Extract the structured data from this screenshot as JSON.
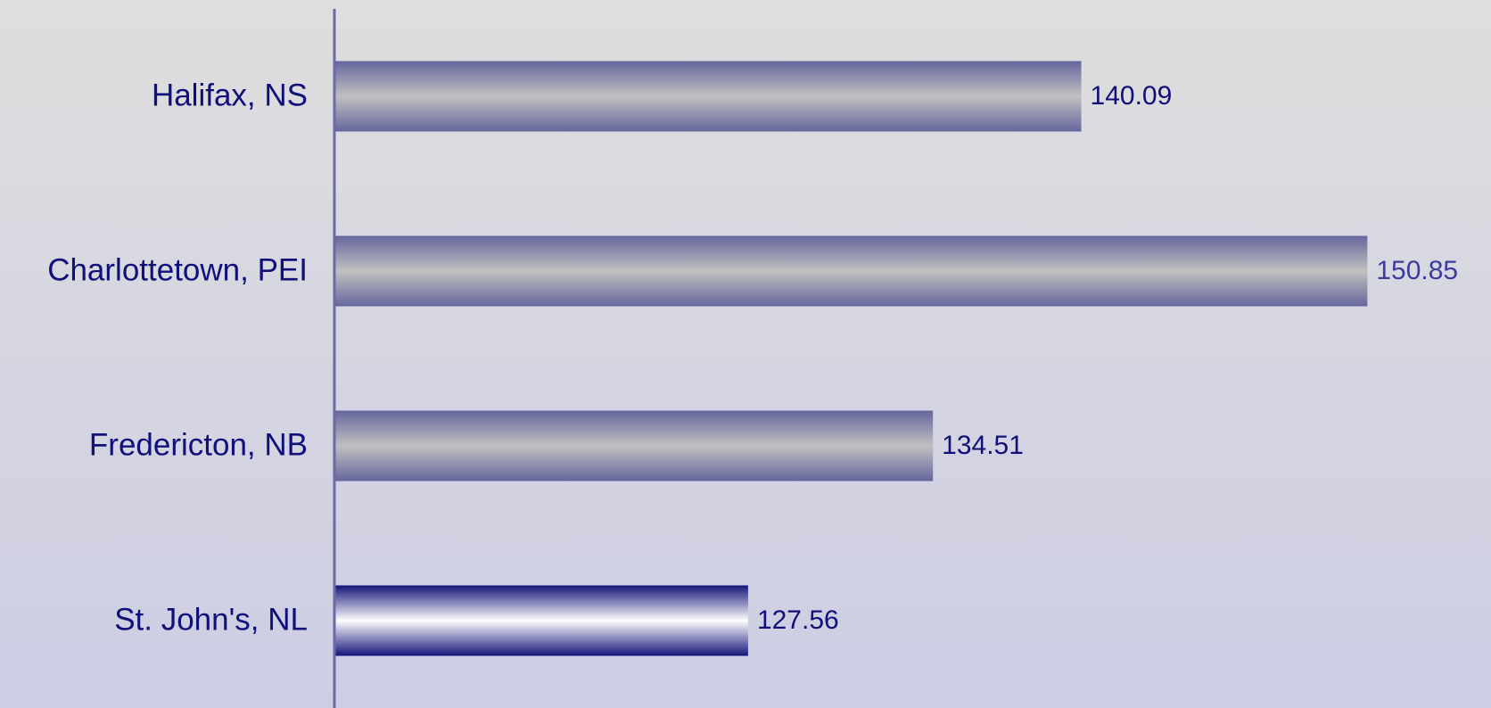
{
  "chart_data": {
    "type": "bar",
    "orientation": "horizontal",
    "categories": [
      "Halifax, NS",
      "Charlottetown, PEI",
      "Fredericton, NB",
      "St. John's, NL"
    ],
    "values": [
      140.09,
      150.85,
      134.51,
      127.56
    ],
    "colors": [
      "#c0c0c0",
      "#c0c0c0",
      "#c0c0c0",
      "#ffffff"
    ],
    "edge_colors": [
      "#66669e",
      "#66669e",
      "#66669e",
      "#14147a"
    ],
    "label_colors": [
      "#10107a",
      "#3c3ca0",
      "#10107a",
      "#10107a"
    ],
    "xlim": [
      112,
      155.5
    ]
  }
}
